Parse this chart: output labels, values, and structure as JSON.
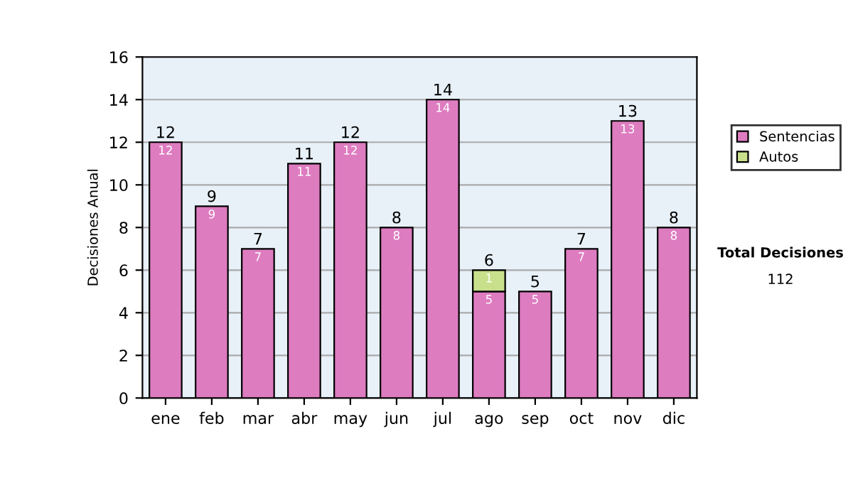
{
  "chart_data": {
    "type": "bar",
    "stacked": true,
    "ylabel": "Decisiones Anual",
    "categories": [
      "ene",
      "feb",
      "mar",
      "abr",
      "may",
      "jun",
      "jul",
      "ago",
      "sep",
      "oct",
      "nov",
      "dic"
    ],
    "series": [
      {
        "name": "Sentencias",
        "color": "#de7cc0",
        "values": [
          12,
          9,
          7,
          11,
          12,
          8,
          14,
          5,
          5,
          7,
          13,
          8
        ],
        "value_labels": [
          "12",
          "9",
          "7",
          "11",
          "12",
          "8",
          "14",
          "5",
          "5",
          "7",
          "13",
          "8"
        ]
      },
      {
        "name": "Autos",
        "color": "#c8e08c",
        "values": [
          0,
          0,
          0,
          0,
          0,
          0,
          0,
          1,
          0,
          0,
          0,
          0
        ],
        "value_labels": [
          null,
          null,
          null,
          null,
          null,
          null,
          null,
          "1",
          null,
          null,
          null,
          null
        ]
      }
    ],
    "totals": [
      "12",
      "9",
      "7",
      "11",
      "12",
      "8",
      "14",
      "6",
      "5",
      "7",
      "13",
      "8"
    ],
    "ylim": [
      0,
      16
    ],
    "yticks": [
      0,
      2,
      4,
      6,
      8,
      10,
      12,
      14,
      16
    ],
    "grid": "y",
    "legend": "right",
    "annotations": [
      "Total Decisiones",
      "112"
    ]
  }
}
